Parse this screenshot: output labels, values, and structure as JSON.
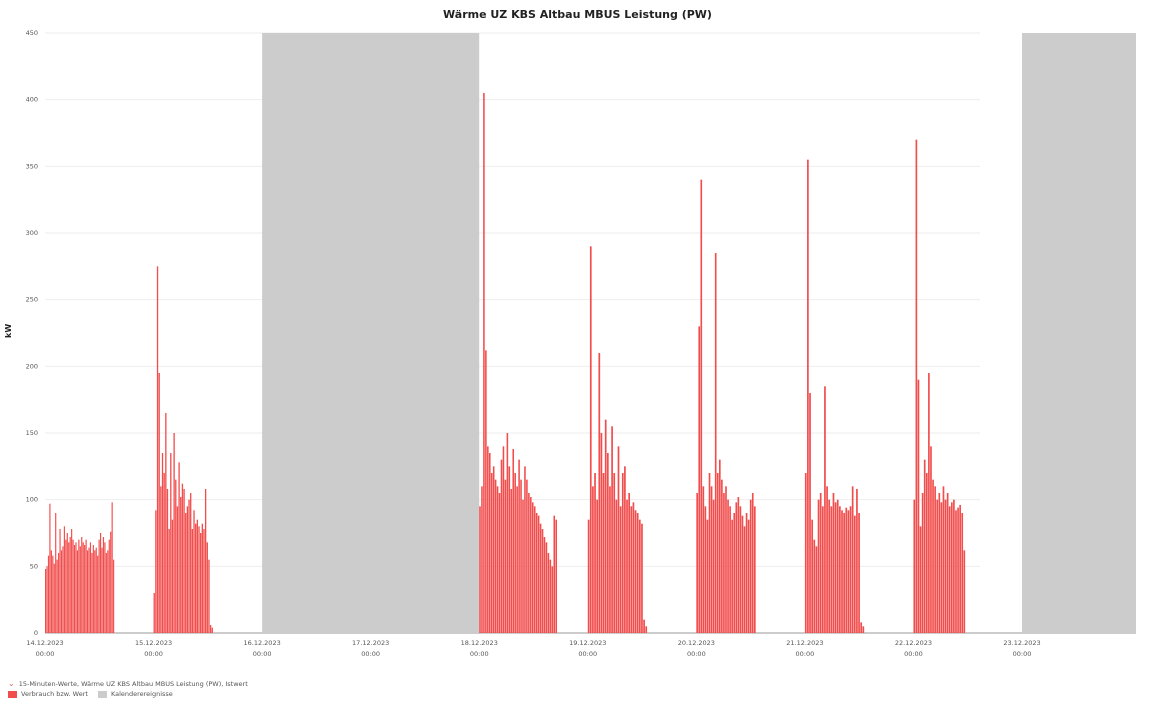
{
  "chart_data": {
    "type": "bar",
    "title": "Wärme UZ KBS Altbau MBUS Leistung (PW)",
    "ylabel": "kW",
    "xlabel": "",
    "ylim": [
      0,
      450
    ],
    "y_ticks": [
      0,
      50,
      100,
      150,
      200,
      250,
      300,
      350,
      400,
      450
    ],
    "x_ticks": [
      {
        "date": "14.12.2023",
        "time": "00:00"
      },
      {
        "date": "15.12.2023",
        "time": "00:00"
      },
      {
        "date": "16.12.2023",
        "time": "00:00"
      },
      {
        "date": "17.12.2023",
        "time": "00:00"
      },
      {
        "date": "18.12.2023",
        "time": "00:00"
      },
      {
        "date": "19.12.2023",
        "time": "00:00"
      },
      {
        "date": "20.12.2023",
        "time": "00:00"
      },
      {
        "date": "21.12.2023",
        "time": "00:00"
      },
      {
        "date": "22.12.2023",
        "time": "00:00"
      },
      {
        "date": "23.12.2023",
        "time": "00:00"
      }
    ],
    "x_range_days": [
      0,
      10.05
    ],
    "calendar_events": [
      [
        2.0,
        4.0
      ],
      [
        9.0,
        10.05
      ]
    ],
    "series": [
      {
        "name": "Verbrauch bzw. Wert",
        "color": "#f24d4d",
        "segments": [
          {
            "start": 0.0,
            "end": 0.64,
            "values": [
              48,
              50,
              58,
              97,
              62,
              58,
              52,
              90,
              55,
              60,
              78,
              62,
              65,
              80,
              70,
              75,
              68,
              72,
              78,
              70,
              66,
              68,
              62,
              70,
              65,
              72,
              68,
              66,
              70,
              62,
              64,
              68,
              60,
              66,
              62,
              64,
              58,
              70,
              75,
              64,
              72,
              68,
              60,
              62,
              70,
              76,
              98,
              55
            ]
          },
          {
            "start": 1.0,
            "end": 1.55,
            "values": [
              30,
              92,
              275,
              195,
              110,
              135,
              120,
              165,
              108,
              78,
              135,
              85,
              150,
              115,
              95,
              128,
              102,
              112,
              108,
              90,
              95,
              100,
              105,
              78,
              92,
              82,
              85,
              80,
              75,
              82,
              78,
              108,
              68,
              55,
              6,
              4
            ]
          },
          {
            "start": 4.0,
            "end": 4.72,
            "values": [
              95,
              110,
              405,
              212,
              140,
              135,
              120,
              125,
              115,
              110,
              105,
              130,
              140,
              115,
              150,
              125,
              108,
              138,
              120,
              110,
              130,
              115,
              100,
              125,
              115,
              105,
              102,
              98,
              95,
              90,
              88,
              82,
              78,
              72,
              68,
              60,
              55,
              50,
              88,
              85
            ]
          },
          {
            "start": 5.0,
            "end": 5.55,
            "values": [
              85,
              290,
              110,
              120,
              100,
              210,
              150,
              120,
              160,
              135,
              110,
              155,
              120,
              100,
              140,
              95,
              120,
              125,
              100,
              105,
              95,
              98,
              92,
              90,
              85,
              82,
              10,
              5
            ]
          },
          {
            "start": 6.0,
            "end": 6.55,
            "values": [
              105,
              230,
              340,
              110,
              95,
              85,
              120,
              110,
              100,
              285,
              120,
              130,
              115,
              105,
              110,
              100,
              95,
              85,
              90,
              98,
              102,
              95,
              88,
              80,
              90,
              85,
              100,
              105,
              95
            ]
          },
          {
            "start": 7.0,
            "end": 7.55,
            "values": [
              120,
              355,
              180,
              85,
              70,
              65,
              100,
              105,
              95,
              185,
              110,
              100,
              95,
              105,
              98,
              100,
              95,
              92,
              90,
              94,
              92,
              95,
              110,
              88,
              108,
              90,
              8,
              5
            ]
          },
          {
            "start": 8.0,
            "end": 8.48,
            "values": [
              100,
              370,
              190,
              80,
              105,
              130,
              120,
              195,
              140,
              115,
              110,
              100,
              105,
              98,
              110,
              100,
              105,
              95,
              98,
              100,
              92,
              94,
              96,
              90,
              62
            ]
          }
        ]
      }
    ],
    "legend": [
      {
        "label": "15-Minuten-Werte, Wärme UZ KBS Altbau MBUS Leistung (PW), Istwert",
        "kind": "line-marker"
      },
      {
        "label": "Verbrauch bzw. Wert",
        "color": "#f24d4d"
      },
      {
        "label": "Kalenderereignisse",
        "color": "#cccccc"
      }
    ]
  }
}
